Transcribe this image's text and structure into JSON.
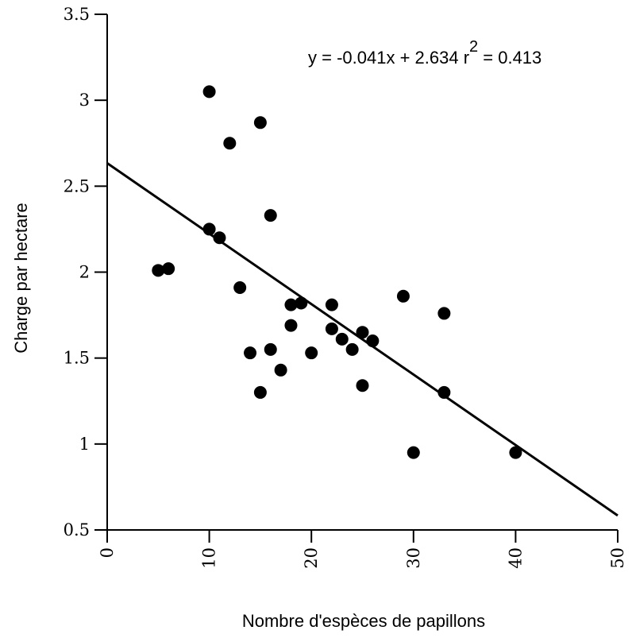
{
  "chart_data": {
    "type": "scatter",
    "title": "",
    "xlabel": "Nombre d'espèces de papillons",
    "ylabel": "Charge par hectare",
    "xlim": [
      0,
      50
    ],
    "ylim": [
      0.5,
      3.5
    ],
    "x_ticks": [
      "0",
      "10",
      "20",
      "30",
      "40",
      "50"
    ],
    "y_ticks": [
      "0.5",
      "1",
      "1.5",
      "2",
      "2.5",
      "3",
      "3.5"
    ],
    "grid": false,
    "annotation": {
      "prefix": "y =  -0.041x + 2.634   r",
      "superscript": "2",
      "suffix": " = 0.413"
    },
    "regression": {
      "slope": -0.041,
      "intercept": 2.634
    },
    "points": [
      {
        "x": 5,
        "y": 2.01
      },
      {
        "x": 6,
        "y": 2.02
      },
      {
        "x": 10,
        "y": 3.05
      },
      {
        "x": 10,
        "y": 2.25
      },
      {
        "x": 11,
        "y": 2.2
      },
      {
        "x": 12,
        "y": 2.75
      },
      {
        "x": 13,
        "y": 1.91
      },
      {
        "x": 14,
        "y": 1.53
      },
      {
        "x": 15,
        "y": 2.87
      },
      {
        "x": 15,
        "y": 1.3
      },
      {
        "x": 16,
        "y": 2.33
      },
      {
        "x": 16,
        "y": 1.55
      },
      {
        "x": 17,
        "y": 1.43
      },
      {
        "x": 18,
        "y": 1.81
      },
      {
        "x": 18,
        "y": 1.69
      },
      {
        "x": 19,
        "y": 1.82
      },
      {
        "x": 20,
        "y": 1.53
      },
      {
        "x": 22,
        "y": 1.81
      },
      {
        "x": 22,
        "y": 1.67
      },
      {
        "x": 23,
        "y": 1.61
      },
      {
        "x": 24,
        "y": 1.55
      },
      {
        "x": 25,
        "y": 1.65
      },
      {
        "x": 25,
        "y": 1.34
      },
      {
        "x": 26,
        "y": 1.6
      },
      {
        "x": 29,
        "y": 1.86
      },
      {
        "x": 30,
        "y": 0.95
      },
      {
        "x": 33,
        "y": 1.76
      },
      {
        "x": 33,
        "y": 1.3
      },
      {
        "x": 40,
        "y": 0.95
      }
    ]
  }
}
